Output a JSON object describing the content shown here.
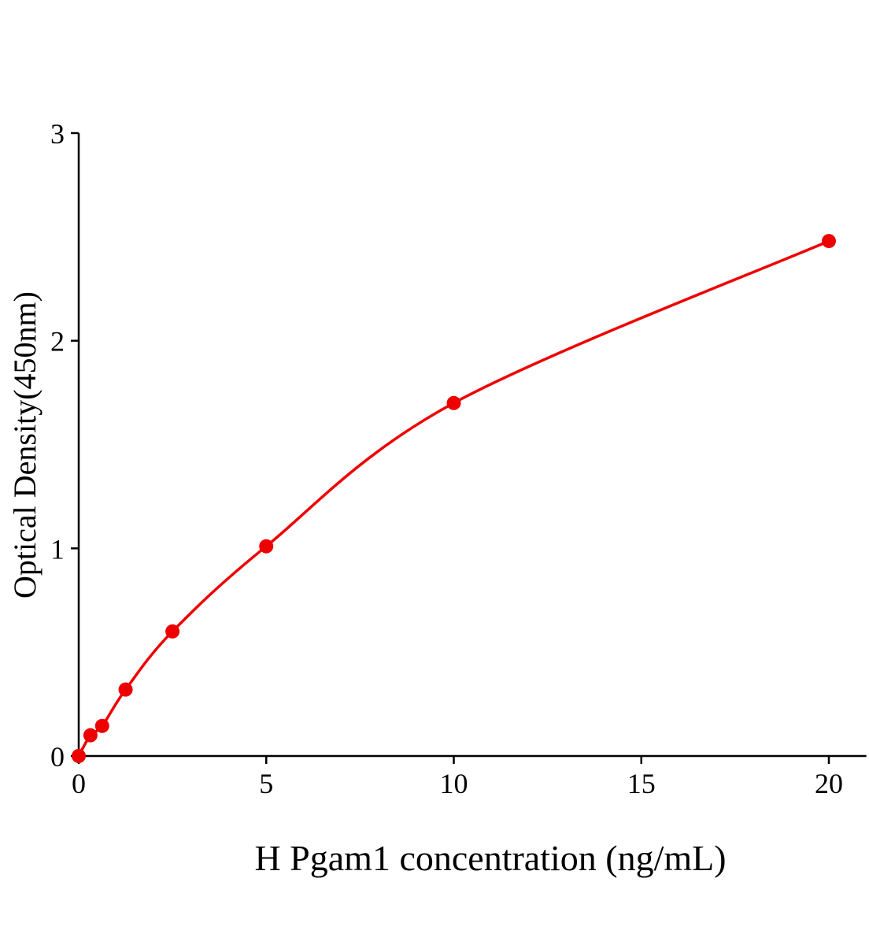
{
  "chart_data": {
    "type": "scatter",
    "title": "",
    "xlabel": "H Pgam1 concentration (ng/mL)",
    "ylabel": "Optical Density(450nm)",
    "xlim": [
      0,
      21
    ],
    "ylim": [
      0,
      3
    ],
    "xticks": [
      0,
      5,
      10,
      15,
      20
    ],
    "yticks": [
      0,
      1,
      2,
      3
    ],
    "grid": false,
    "color": "#ee0000",
    "series": [
      {
        "x": [
          0,
          0.3125,
          0.625,
          1.25,
          2.5,
          5,
          10,
          20
        ],
        "y": [
          0.0,
          0.1,
          0.145,
          0.32,
          0.6,
          1.01,
          1.7,
          2.48
        ],
        "fit_line": true
      }
    ]
  }
}
